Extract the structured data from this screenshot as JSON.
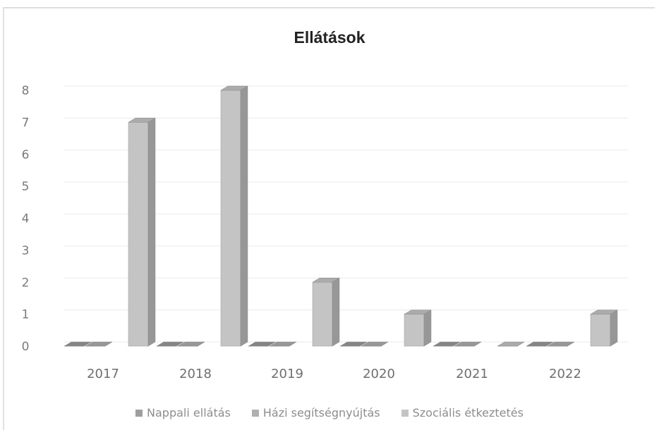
{
  "chart_data": {
    "type": "bar",
    "title": "Ellátások",
    "categories": [
      "2017",
      "2018",
      "2019",
      "2020",
      "2021",
      "2022"
    ],
    "series": [
      {
        "name": "Nappali ellátás",
        "values": [
          0,
          0,
          0,
          0,
          0,
          0
        ],
        "color": "#9e9e9e"
      },
      {
        "name": "Házi segítségnyújtás",
        "values": [
          0,
          0,
          0,
          0,
          0,
          0
        ],
        "color": "#b0b0b0"
      },
      {
        "name": "Szociális étkeztetés",
        "values": [
          7,
          8,
          2,
          1,
          0,
          1
        ],
        "color": "#c4c4c4"
      }
    ],
    "ylim": [
      0,
      8
    ],
    "yticks": [
      "0",
      "1",
      "2",
      "3",
      "4",
      "5",
      "6",
      "7",
      "8"
    ],
    "grid": true,
    "legend_position": "bottom",
    "style": "3d-column"
  }
}
